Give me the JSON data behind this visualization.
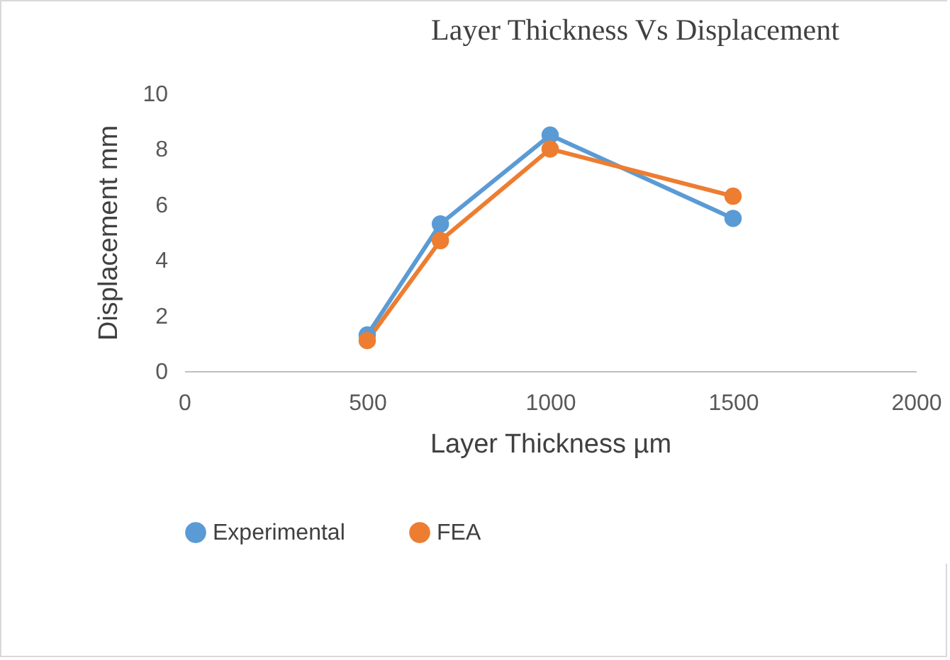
{
  "chart_data": {
    "type": "line",
    "title": "Layer Thickness Vs Displacement",
    "xlabel": "Layer Thickness µm",
    "ylabel": "Displacement mm",
    "x": [
      500,
      700,
      1000,
      1500
    ],
    "series": [
      {
        "name": "Experimental",
        "color": "#5b9bd5",
        "values": [
          1.3,
          5.3,
          8.5,
          5.5
        ]
      },
      {
        "name": "FEA",
        "color": "#ed7d31",
        "values": [
          1.1,
          4.7,
          8.0,
          6.3
        ]
      }
    ],
    "xlim": [
      0,
      2000
    ],
    "xticks": [
      0,
      500,
      1000,
      1500,
      2000
    ],
    "ylim": [
      0,
      10
    ],
    "yticks": [
      0,
      2,
      4,
      6,
      8,
      10
    ],
    "grid": false,
    "legend": "bottom",
    "marker": "circle",
    "line_style": "solid"
  }
}
